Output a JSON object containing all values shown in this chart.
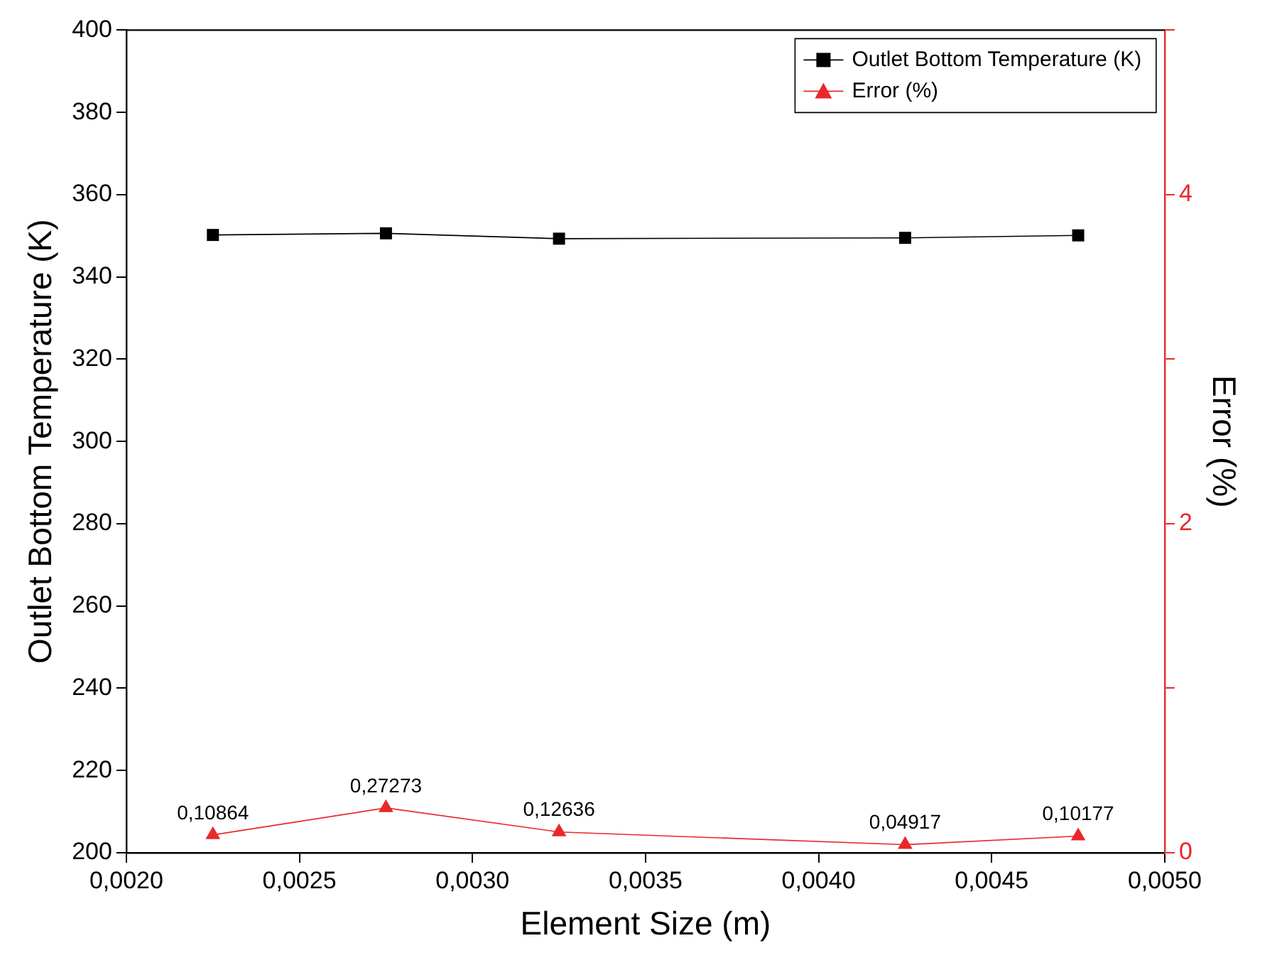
{
  "chart_data": {
    "type": "line",
    "xlabel": "Element Size (m)",
    "ylabel": "Outlet Bottom Temperature (K)",
    "y2label": "Error (%)",
    "x": [
      0.00225,
      0.00275,
      0.00325,
      0.00425,
      0.00475
    ],
    "series": [
      {
        "name": "Outlet Bottom Temperature (K)",
        "color": "#000000",
        "values": [
          350.2,
          350.6,
          349.3,
          349.5,
          350.1
        ],
        "marker": "square"
      },
      {
        "name": "Error (%)",
        "color": "#e8282b",
        "axis": "y2",
        "marker": "triangle",
        "values": [
          0.10864,
          0.27273,
          0.12636,
          0.04917,
          0.10177
        ],
        "value_labels": [
          "0,10864",
          "0,27273",
          "0,12636",
          "0,04917",
          "0,10177"
        ]
      }
    ],
    "xlim": [
      0.002,
      0.005
    ],
    "xticks": [
      {
        "value": 0.002,
        "label": "0,0020"
      },
      {
        "value": 0.0025,
        "label": "0,0025"
      },
      {
        "value": 0.003,
        "label": "0,0030"
      },
      {
        "value": 0.0035,
        "label": "0,0035"
      },
      {
        "value": 0.004,
        "label": "0,0040"
      },
      {
        "value": 0.0045,
        "label": "0,0045"
      },
      {
        "value": 0.005,
        "label": "0,0050"
      }
    ],
    "ylim": [
      200,
      400
    ],
    "yticks": [
      200,
      220,
      240,
      260,
      280,
      300,
      320,
      340,
      360,
      380,
      400
    ],
    "y2lim": [
      0,
      5
    ],
    "y2ticks": [
      0,
      {
        "value": 1,
        "label": null
      },
      2,
      {
        "value": 3,
        "label": null
      },
      4,
      {
        "value": 5,
        "label": null
      }
    ],
    "grid": false,
    "legend": "top right"
  }
}
